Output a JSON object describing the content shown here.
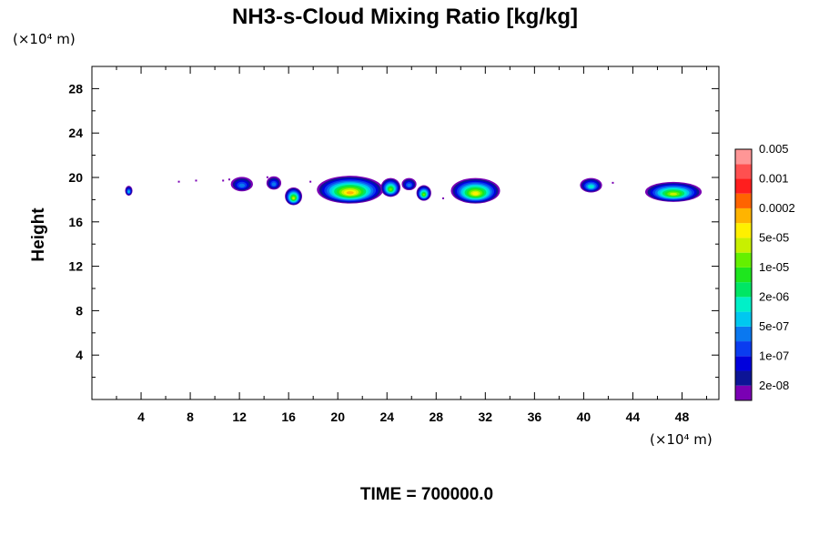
{
  "chart_data": {
    "type": "heatmap",
    "title": "NH3-s-Cloud Mixing Ratio [kg/kg]",
    "ylabel": "Height",
    "xlabel": "",
    "x_unit": "(×10⁴ m)",
    "y_unit": "(×10⁴ m)",
    "time_label": "TIME = 700000.0",
    "xlim": [
      0,
      51
    ],
    "ylim": [
      0,
      30
    ],
    "x_ticks": [
      4,
      8,
      12,
      16,
      20,
      24,
      28,
      32,
      36,
      40,
      44,
      48
    ],
    "x_tick_labels": [
      "4",
      "8",
      "12",
      "16",
      "20",
      "24",
      "28",
      "32",
      "36",
      "40",
      "44",
      "48"
    ],
    "y_ticks": [
      4,
      8,
      12,
      16,
      20,
      24,
      28
    ],
    "y_tick_labels": [
      "4",
      "8",
      "12",
      "16",
      "20",
      "24",
      "28"
    ],
    "colorbar": {
      "colors": [
        "#7a00b4",
        "#0c1496",
        "#0000dc",
        "#0a3cf0",
        "#0a78f0",
        "#00c8f0",
        "#00f0c8",
        "#00e664",
        "#1ee61e",
        "#64f000",
        "#c8f000",
        "#fff000",
        "#ffb400",
        "#ff6400",
        "#ff1e1e",
        "#ff5050",
        "#ff9696"
      ],
      "labels": [
        "2e-08",
        "1e-07",
        "5e-07",
        "2e-06",
        "1e-05",
        "5e-05",
        "0.0002",
        "0.001",
        "0.005"
      ]
    },
    "clouds": [
      {
        "x": 3.0,
        "y": 18.8,
        "w": 0.6,
        "h": 0.9,
        "level": 5
      },
      {
        "x": 12.2,
        "y": 19.4,
        "w": 1.8,
        "h": 1.3,
        "level": 4
      },
      {
        "x": 14.8,
        "y": 19.5,
        "w": 1.2,
        "h": 1.2,
        "level": 4
      },
      {
        "x": 16.4,
        "y": 18.3,
        "w": 1.4,
        "h": 1.6,
        "level": 10
      },
      {
        "x": 21.0,
        "y": 18.9,
        "w": 5.4,
        "h": 2.5,
        "level": 12
      },
      {
        "x": 24.3,
        "y": 19.1,
        "w": 1.6,
        "h": 1.7,
        "level": 9
      },
      {
        "x": 25.8,
        "y": 19.4,
        "w": 1.2,
        "h": 1.1,
        "level": 4
      },
      {
        "x": 27.0,
        "y": 18.6,
        "w": 1.2,
        "h": 1.4,
        "level": 9
      },
      {
        "x": 31.2,
        "y": 18.8,
        "w": 4.0,
        "h": 2.3,
        "level": 11
      },
      {
        "x": 40.6,
        "y": 19.3,
        "w": 1.8,
        "h": 1.3,
        "level": 6
      },
      {
        "x": 47.3,
        "y": 18.7,
        "w": 4.6,
        "h": 1.8,
        "level": 10
      }
    ]
  }
}
